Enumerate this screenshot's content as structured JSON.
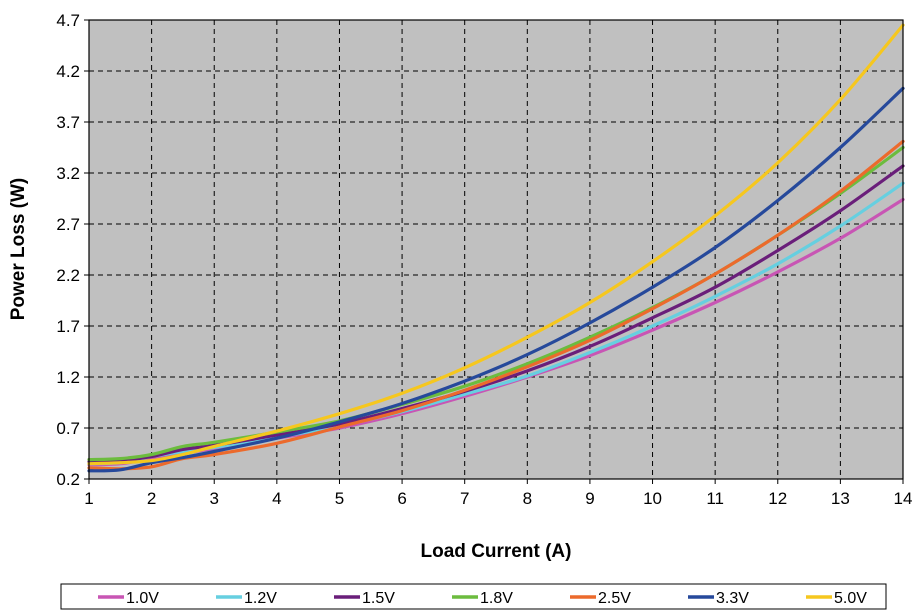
{
  "chart_data": {
    "type": "line",
    "title": "",
    "xlabel": "Load Current (A)",
    "ylabel": "Power Loss (W)",
    "xlim": [
      1,
      14
    ],
    "ylim": [
      0.2,
      4.7
    ],
    "xticks": [
      1,
      2,
      3,
      4,
      5,
      6,
      7,
      8,
      9,
      10,
      11,
      12,
      13,
      14
    ],
    "yticks": [
      0.2,
      0.7,
      1.2,
      1.7,
      2.2,
      2.7,
      3.2,
      3.7,
      4.2,
      4.7
    ],
    "xtick_labels": [
      "1",
      "2",
      "3",
      "4",
      "5",
      "6",
      "7",
      "8",
      "9",
      "10",
      "11",
      "12",
      "13",
      "14"
    ],
    "ytick_labels": [
      "0.2",
      "0.7",
      "1.2",
      "1.7",
      "2.2",
      "2.7",
      "3.2",
      "3.7",
      "4.2",
      "4.7"
    ],
    "grid": true,
    "grid_style": "dashed",
    "plot_background": "#c0c0c0",
    "legend_position": "bottom",
    "x": [
      1,
      1.5,
      2,
      2.5,
      3,
      4,
      5,
      6,
      7,
      8,
      9,
      10,
      11,
      12,
      13,
      14
    ],
    "series": [
      {
        "name": "1.0V",
        "color": "#c855b4",
        "values": [
          0.34,
          0.35,
          0.4,
          0.45,
          0.5,
          0.6,
          0.7,
          0.84,
          1.01,
          1.2,
          1.41,
          1.66,
          1.93,
          2.23,
          2.56,
          2.94
        ]
      },
      {
        "name": "1.2V",
        "color": "#66cfe0",
        "values": [
          0.35,
          0.36,
          0.42,
          0.47,
          0.51,
          0.61,
          0.72,
          0.86,
          1.03,
          1.21,
          1.44,
          1.7,
          1.99,
          2.31,
          2.68,
          3.1
        ]
      },
      {
        "name": "1.5V",
        "color": "#6a1e7a",
        "values": [
          0.37,
          0.38,
          0.42,
          0.49,
          0.53,
          0.63,
          0.74,
          0.89,
          1.06,
          1.26,
          1.5,
          1.78,
          2.08,
          2.44,
          2.83,
          3.27
        ]
      },
      {
        "name": "1.8V",
        "color": "#6cbc3e",
        "values": [
          0.39,
          0.4,
          0.44,
          0.52,
          0.56,
          0.66,
          0.77,
          0.93,
          1.11,
          1.33,
          1.59,
          1.88,
          2.21,
          2.59,
          3.0,
          3.45
        ]
      },
      {
        "name": "2.5V",
        "color": "#ec6a2c",
        "values": [
          0.31,
          0.3,
          0.32,
          0.4,
          0.44,
          0.55,
          0.71,
          0.87,
          1.07,
          1.3,
          1.56,
          1.87,
          2.21,
          2.59,
          3.02,
          3.51
        ]
      },
      {
        "name": "3.3V",
        "color": "#26499b",
        "values": [
          0.28,
          0.29,
          0.36,
          0.41,
          0.47,
          0.6,
          0.76,
          0.94,
          1.16,
          1.42,
          1.73,
          2.08,
          2.47,
          2.93,
          3.45,
          4.03
        ]
      },
      {
        "name": "5.0V",
        "color": "#f6c71e",
        "values": [
          0.35,
          0.36,
          0.38,
          0.44,
          0.52,
          0.67,
          0.84,
          1.04,
          1.29,
          1.59,
          1.93,
          2.33,
          2.78,
          3.3,
          3.92,
          4.65
        ]
      }
    ]
  }
}
